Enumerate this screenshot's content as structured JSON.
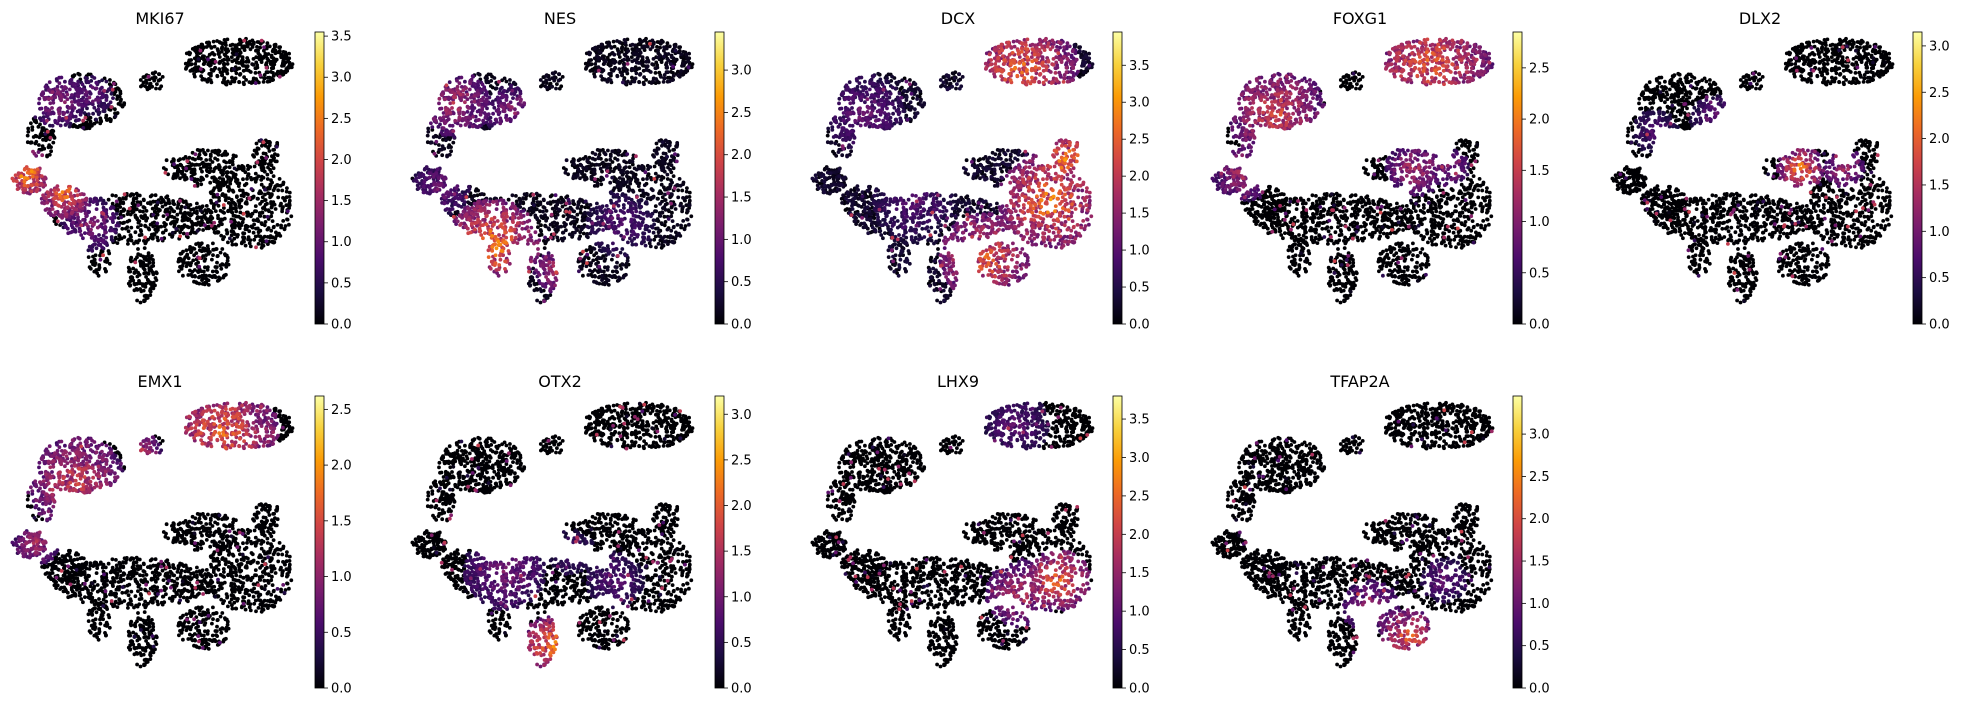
{
  "figure": {
    "colormap": "inferno",
    "colormap_stops": [
      "#000004",
      "#1b0c41",
      "#4a0c6b",
      "#781c6d",
      "#a52c60",
      "#cf4446",
      "#ed6925",
      "#fb9b06",
      "#f7d13d",
      "#fcffa4"
    ]
  },
  "chart_data": [
    {
      "type": "scatter",
      "title": "MKI67",
      "color_range": [
        0,
        3.55
      ],
      "colorbar_ticks": [
        "0.0",
        "0.5",
        "1.0",
        "1.5",
        "2.0",
        "2.5",
        "3.0",
        "3.5"
      ],
      "hotspots": [
        {
          "x": 0.05,
          "y": 0.5,
          "r": 0.09,
          "v": 3.1
        },
        {
          "x": 0.18,
          "y": 0.57,
          "r": 0.09,
          "v": 2.8
        },
        {
          "x": 0.16,
          "y": 0.24,
          "r": 0.1,
          "v": 1.6
        },
        {
          "x": 0.28,
          "y": 0.22,
          "r": 0.07,
          "v": 1.3
        },
        {
          "x": 0.27,
          "y": 0.68,
          "r": 0.1,
          "v": 1.5
        }
      ],
      "base_value": 0.0
    },
    {
      "type": "scatter",
      "title": "NES",
      "color_range": [
        0,
        3.45
      ],
      "colorbar_ticks": [
        "0.0",
        "0.5",
        "1.0",
        "1.5",
        "2.0",
        "2.5",
        "3.0"
      ],
      "hotspots": [
        {
          "x": 0.28,
          "y": 0.75,
          "r": 0.16,
          "v": 2.9
        },
        {
          "x": 0.15,
          "y": 0.25,
          "r": 0.12,
          "v": 1.9
        },
        {
          "x": 0.35,
          "y": 0.28,
          "r": 0.1,
          "v": 1.6
        },
        {
          "x": 0.1,
          "y": 0.55,
          "r": 0.1,
          "v": 1.3
        },
        {
          "x": 0.5,
          "y": 0.85,
          "r": 0.08,
          "v": 2.0
        },
        {
          "x": 0.72,
          "y": 0.68,
          "r": 0.12,
          "v": 1.0
        }
      ],
      "base_value": 0.2
    },
    {
      "type": "scatter",
      "title": "DCX",
      "color_range": [
        0,
        3.95
      ],
      "colorbar_ticks": [
        "0.0",
        "0.5",
        "1.0",
        "1.5",
        "2.0",
        "2.5",
        "3.0",
        "3.5"
      ],
      "hotspots": [
        {
          "x": 0.72,
          "y": 0.12,
          "r": 0.2,
          "v": 3.0
        },
        {
          "x": 0.82,
          "y": 0.6,
          "r": 0.18,
          "v": 3.3
        },
        {
          "x": 0.88,
          "y": 0.45,
          "r": 0.1,
          "v": 3.5
        },
        {
          "x": 0.6,
          "y": 0.8,
          "r": 0.16,
          "v": 3.0
        },
        {
          "x": 0.18,
          "y": 0.28,
          "r": 0.14,
          "v": 1.4
        },
        {
          "x": 0.35,
          "y": 0.6,
          "r": 0.14,
          "v": 1.2
        }
      ],
      "base_value": 0.4
    },
    {
      "type": "scatter",
      "title": "FOXG1",
      "color_range": [
        0,
        2.85
      ],
      "colorbar_ticks": [
        "0.0",
        "0.5",
        "1.0",
        "1.5",
        "2.0",
        "2.5"
      ],
      "hotspots": [
        {
          "x": 0.75,
          "y": 0.1,
          "r": 0.22,
          "v": 2.1
        },
        {
          "x": 0.22,
          "y": 0.28,
          "r": 0.17,
          "v": 1.9
        },
        {
          "x": 0.1,
          "y": 0.5,
          "r": 0.1,
          "v": 1.5
        },
        {
          "x": 0.7,
          "y": 0.48,
          "r": 0.1,
          "v": 1.6
        },
        {
          "x": 0.82,
          "y": 0.48,
          "r": 0.07,
          "v": 1.3
        }
      ],
      "base_value": 0.0
    },
    {
      "type": "scatter",
      "title": "DLX2",
      "color_range": [
        0,
        3.15
      ],
      "colorbar_ticks": [
        "0.0",
        "0.5",
        "1.0",
        "1.5",
        "2.0",
        "2.5",
        "3.0"
      ],
      "hotspots": [
        {
          "x": 0.65,
          "y": 0.48,
          "r": 0.08,
          "v": 2.6
        },
        {
          "x": 0.8,
          "y": 0.48,
          "r": 0.07,
          "v": 1.7
        },
        {
          "x": 0.35,
          "y": 0.3,
          "r": 0.08,
          "v": 1.1
        },
        {
          "x": 0.15,
          "y": 0.35,
          "r": 0.08,
          "v": 0.9
        }
      ],
      "base_value": 0.0
    },
    {
      "type": "scatter",
      "title": "EMX1",
      "color_range": [
        0,
        2.62
      ],
      "colorbar_ticks": [
        "0.0",
        "0.5",
        "1.0",
        "1.5",
        "2.0",
        "2.5"
      ],
      "hotspots": [
        {
          "x": 0.72,
          "y": 0.12,
          "r": 0.2,
          "v": 2.0
        },
        {
          "x": 0.22,
          "y": 0.3,
          "r": 0.17,
          "v": 1.7
        },
        {
          "x": 0.08,
          "y": 0.52,
          "r": 0.08,
          "v": 1.4
        },
        {
          "x": 0.45,
          "y": 0.2,
          "r": 0.07,
          "v": 1.6
        }
      ],
      "base_value": 0.0
    },
    {
      "type": "scatter",
      "title": "OTX2",
      "color_range": [
        0,
        3.2
      ],
      "colorbar_ticks": [
        "0.0",
        "0.5",
        "1.0",
        "1.5",
        "2.0",
        "2.5",
        "3.0"
      ],
      "hotspots": [
        {
          "x": 0.48,
          "y": 0.88,
          "r": 0.1,
          "v": 2.7
        },
        {
          "x": 0.32,
          "y": 0.62,
          "r": 0.14,
          "v": 1.3
        },
        {
          "x": 0.7,
          "y": 0.65,
          "r": 0.1,
          "v": 1.0
        },
        {
          "x": 0.55,
          "y": 0.55,
          "r": 0.08,
          "v": 0.9
        }
      ],
      "base_value": 0.0
    },
    {
      "type": "scatter",
      "title": "LHX9",
      "color_range": [
        0,
        3.8
      ],
      "colorbar_ticks": [
        "0.0",
        "0.5",
        "1.0",
        "1.5",
        "2.0",
        "2.5",
        "3.0",
        "3.5"
      ],
      "hotspots": [
        {
          "x": 0.85,
          "y": 0.65,
          "r": 0.11,
          "v": 3.0
        },
        {
          "x": 0.72,
          "y": 0.7,
          "r": 0.12,
          "v": 2.2
        },
        {
          "x": 0.7,
          "y": 0.1,
          "r": 0.12,
          "v": 1.2
        }
      ],
      "base_value": 0.0
    },
    {
      "type": "scatter",
      "title": "TFAP2A",
      "color_range": [
        0,
        3.45
      ],
      "colorbar_ticks": [
        "0.0",
        "0.5",
        "1.0",
        "1.5",
        "2.0",
        "2.5",
        "3.0"
      ],
      "hotspots": [
        {
          "x": 0.68,
          "y": 0.85,
          "r": 0.1,
          "v": 2.6
        },
        {
          "x": 0.55,
          "y": 0.75,
          "r": 0.1,
          "v": 1.7
        },
        {
          "x": 0.8,
          "y": 0.65,
          "r": 0.08,
          "v": 1.2
        }
      ],
      "base_value": 0.0
    }
  ]
}
